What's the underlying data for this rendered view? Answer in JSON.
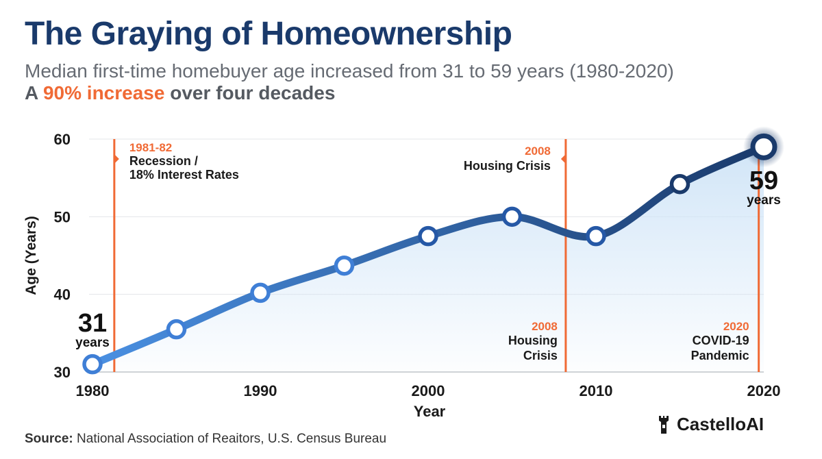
{
  "header": {
    "title": "The Graying of Homeownership",
    "subtitle": "Median first-time homebuyer age increased from 31 to 59 years (1980-2020)",
    "highlight_prefix": "A ",
    "highlight": "90% increase",
    "highlight_suffix": " over four decades"
  },
  "chart_data": {
    "type": "line",
    "title": "The Graying of Homeownership",
    "xlabel": "Year",
    "ylabel": "Age (Years)",
    "xlim": [
      1980,
      2020
    ],
    "ylim": [
      30,
      60
    ],
    "xticks": [
      "1980",
      "1990",
      "2000",
      "2010",
      "2020"
    ],
    "yticks": [
      "30",
      "40",
      "50",
      "60"
    ],
    "grid": true,
    "series": [
      {
        "name": "Median first-time homebuyer age",
        "x": [
          1980,
          1985,
          1990,
          1995,
          2000,
          2005,
          2010,
          2015,
          2020
        ],
        "y": [
          31,
          35.5,
          40.2,
          43.7,
          47.5,
          50,
          47.5,
          54.2,
          59
        ]
      }
    ],
    "start_label": {
      "value": "31",
      "unit": "years"
    },
    "end_label": {
      "value": "59",
      "unit": "years"
    },
    "annotations": [
      {
        "x": 1981.3,
        "year": "1981-82",
        "line1": "Recession /",
        "line2": "18% Interest Rates"
      },
      {
        "x": 2008.2,
        "year": "2008",
        "line1": "Housing Crisis",
        "line2": ""
      },
      {
        "x": 2008.2,
        "year": "2008",
        "line1": "Housing",
        "line2": "Crisis"
      },
      {
        "x": 2019.7,
        "year": "2020",
        "line1": "COVID-19",
        "line2": "Pandemic"
      }
    ],
    "colors": {
      "line_start": "#4a90e2",
      "line_end": "#1a3a6b",
      "event": "#f06a35",
      "fill": "#cfe4f7"
    }
  },
  "footer": {
    "source_label": "Source:",
    "source_text": " National Association of Reaitors, U.S. Census Bureau",
    "brand": "CastelloAI",
    "brand_icon": "castle-tower-icon"
  }
}
